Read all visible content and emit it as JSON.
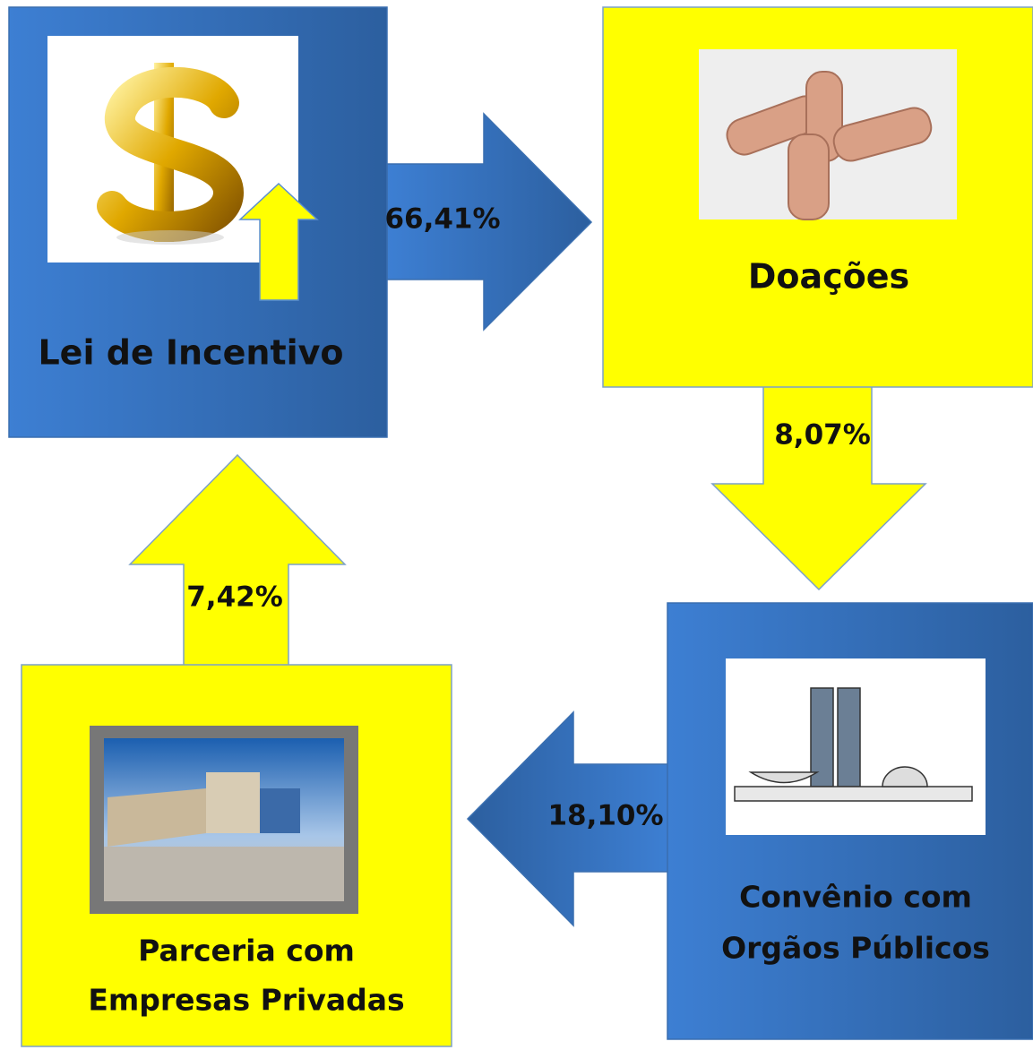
{
  "nodes": [
    {
      "label": "Lei de Incentivo"
    },
    {
      "label": "Doações"
    },
    {
      "label": [
        "Convênio com",
        "Orgãos Públicos"
      ]
    },
    {
      "label": [
        "Parceria com",
        "Empresas Privadas"
      ]
    }
  ],
  "edges": [
    {
      "label": "66,41%"
    },
    {
      "label": "8,07%"
    },
    {
      "label": "18,10%"
    },
    {
      "label": "7,42%"
    }
  ]
}
